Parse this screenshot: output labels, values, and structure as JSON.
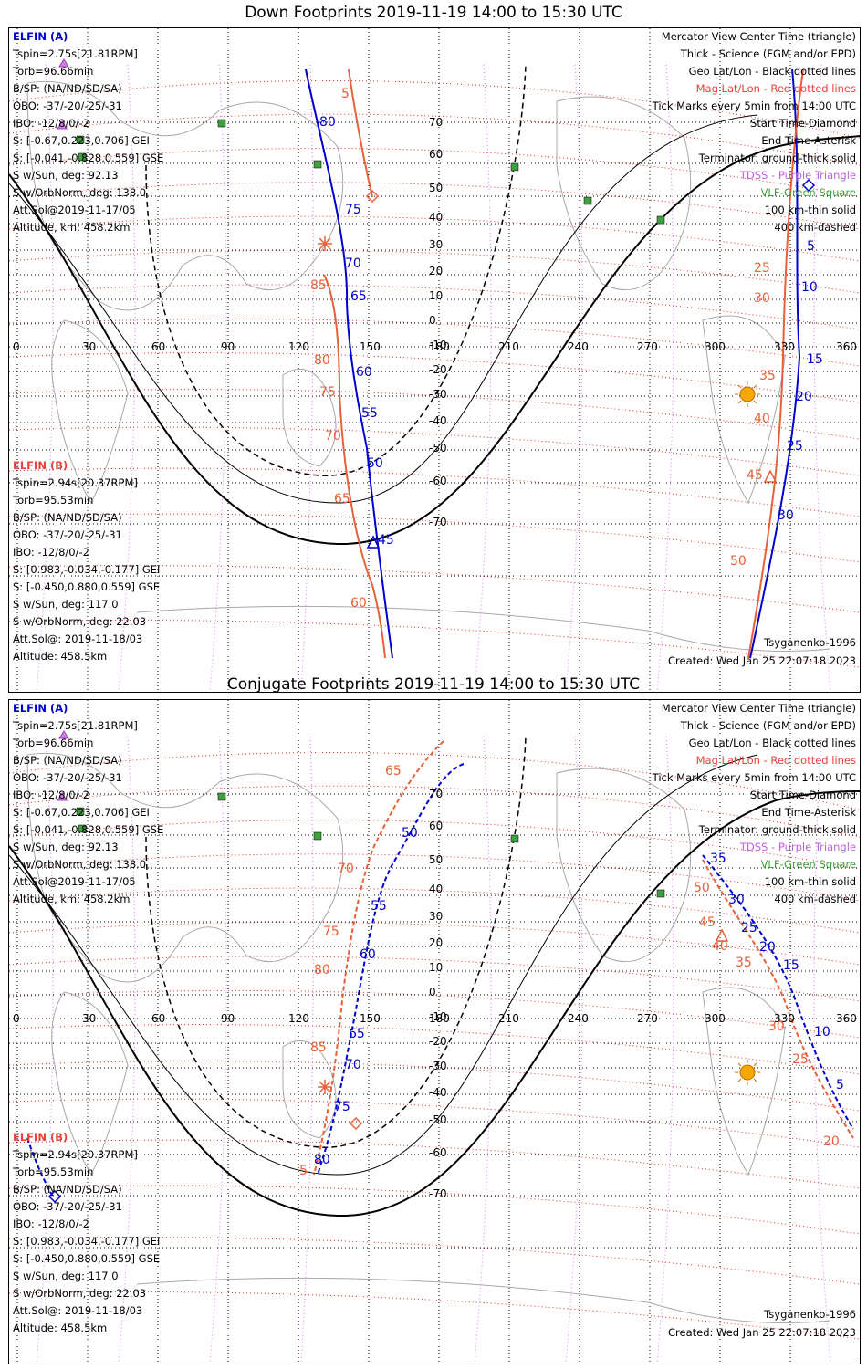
{
  "panels": [
    {
      "title": "Down Footprints 2019-11-19 14:00 to 15:30 UTC",
      "elfin_a": {
        "header": "ELFIN (A)",
        "lines": [
          "Tspin=2.75s[21.81RPM]",
          "Torb=96.66min",
          "B/SP: (NA/ND/SD/SA)",
          "OBO: -37/-20/-25/-31",
          "IBO: -12/8/0/-2",
          "S: [-0.67,0.223,0.706] GEI",
          "S: [-0.041,-0.828,0.559] GSE",
          "S w/Sun, deg: 92.13",
          "S w/OrbNorm, deg: 138.0",
          "Att.Sol@2019-11-17/05",
          "Altitude, km: 458.2km"
        ]
      },
      "elfin_b": {
        "header": "ELFIN (B)",
        "lines": [
          "Tspin=2.94s[20.37RPM]",
          "Torb=95.53min",
          "B/SP: (NA/ND/SD/SA)",
          "OBO: -37/-20/-25/-31",
          "IBO: -12/8/0/-2",
          "S: [0.983,-0.034,-0.177] GEI",
          "S: [-0.450,0.880,0.559] GSE",
          "S w/Sun, deg: 117.0",
          "S w/OrbNorm, deg: 22.03",
          "Att.Sol@: 2019-11-18/03",
          "Altitude: 458.5km"
        ]
      },
      "legend": [
        "Mercator View Center Time (triangle)",
        "Thick - Science (FGM and/or EPD)",
        "Geo Lat/Lon - Black dotted lines",
        "Mag Lat/Lon - Red dotted lines",
        "Tick Marks every 5min from 14:00 UTC",
        "Start Time-Diamond",
        "End Time-Asterisk",
        "Terminator: ground-thick solid",
        "TDSS - Purple Triangle",
        "VLF-Green Square",
        "100 km-thin solid",
        "400 km-dashed"
      ],
      "model": "Tsyganenko-1996",
      "created": "Created: Wed Jan 25 22:07:18 2023",
      "track_labels_a": [
        "80",
        "75",
        "70",
        "65",
        "60",
        "55",
        "50",
        "45",
        "5",
        "10",
        "15",
        "20",
        "25",
        "30"
      ],
      "track_labels_b": [
        "5",
        "85",
        "80",
        "75",
        "70",
        "65",
        "60",
        "25",
        "30",
        "35",
        "40",
        "45",
        "50"
      ]
    },
    {
      "title": "Conjugate Footprints 2019-11-19 14:00 to 15:30 UTC",
      "elfin_a": {
        "header": "ELFIN (A)",
        "lines": [
          "Tspin=2.75s[21.81RPM]",
          "Torb=96.66min",
          "B/SP: (NA/ND/SD/SA)",
          "OBO: -37/-20/-25/-31",
          "IBO: -12/8/0/-2",
          "S: [-0.67,0.223,0.706] GEI",
          "S: [-0.041,-0.828,0.559] GSE",
          "S w/Sun, deg: 92.13",
          "S w/OrbNorm, deg: 138.0",
          "Att.Sol@2019-11-17/05",
          "Altitude, km: 458.2km"
        ]
      },
      "elfin_b": {
        "header": "ELFIN (B)",
        "lines": [
          "Tspin=2.94s[20.37RPM]",
          "Torb=95.53min",
          "B/SP: (NA/ND/SD/SA)",
          "OBO: -37/-20/-25/-31",
          "IBO: -12/8/0/-2",
          "S: [0.983,-0.034,-0.177] GEI",
          "S: [-0.450,0.880,0.559] GSE",
          "S w/Sun, deg: 117.0",
          "S w/OrbNorm, deg: 22.03",
          "Att.Sol@: 2019-11-18/03",
          "Altitude: 458.5km"
        ]
      },
      "legend": [
        "Mercator View Center Time (triangle)",
        "Thick - Science (FGM and/or EPD)",
        "Geo Lat/Lon - Black dotted lines",
        "Mag Lat/Lon - Red dotted lines",
        "Tick Marks every 5min from 14:00 UTC",
        "Start Time-Diamond",
        "End Time-Asterisk",
        "Terminator: ground-thick solid",
        "TDSS - Purple Triangle",
        "VLF-Green Square",
        "100 km-thin solid",
        "400 km-dashed"
      ],
      "model": "Tsyganenko-1996",
      "created": "Created: Wed Jan 25 22:07:18 2023",
      "track_labels_a": [
        "50",
        "55",
        "60",
        "65",
        "70",
        "75",
        "80",
        "35",
        "30",
        "25",
        "20",
        "15",
        "10",
        "5"
      ],
      "track_labels_b": [
        "65",
        "70",
        "75",
        "80",
        "85",
        "5",
        "50",
        "45",
        "40",
        "35",
        "30",
        "25",
        "20"
      ]
    }
  ],
  "lon_labels": [
    "0",
    "30",
    "60",
    "90",
    "120",
    "150",
    "180",
    "210",
    "240",
    "270",
    "300",
    "330",
    "360"
  ],
  "lat_labels": [
    "70",
    "60",
    "50",
    "40",
    "30",
    "20",
    "10",
    "0",
    "-10",
    "-20",
    "-30",
    "-40",
    "-50",
    "-60",
    "-70"
  ],
  "colors": {
    "elfin_a": "#0000cc",
    "elfin_b": "#e8603a",
    "mag": "#e03030",
    "vlf": "#40a040",
    "tdss": "#c060e0",
    "sun": "#f7a800"
  }
}
